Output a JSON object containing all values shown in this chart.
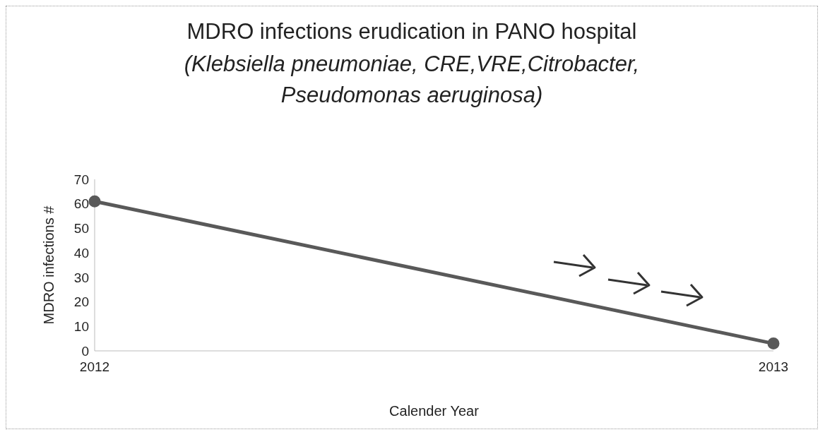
{
  "chart_data": {
    "type": "line",
    "title": "MDRO infections erudication in PANO hospital",
    "subtitle": "(Klebsiella pneumoniae, CRE,VRE,Citrobacter, Pseudomonas aeruginosa)",
    "xlabel": "Calender Year",
    "ylabel": "MDRO infections #",
    "categories": [
      "2012",
      "2013"
    ],
    "series": [
      {
        "color": "#595959",
        "values": [
          61,
          3
        ]
      }
    ],
    "ylim": [
      0,
      70
    ],
    "yticks": [
      0,
      10,
      20,
      30,
      40,
      50,
      60,
      70
    ],
    "grid": false,
    "legend": false,
    "marker": "circle",
    "line_style": "solid"
  }
}
